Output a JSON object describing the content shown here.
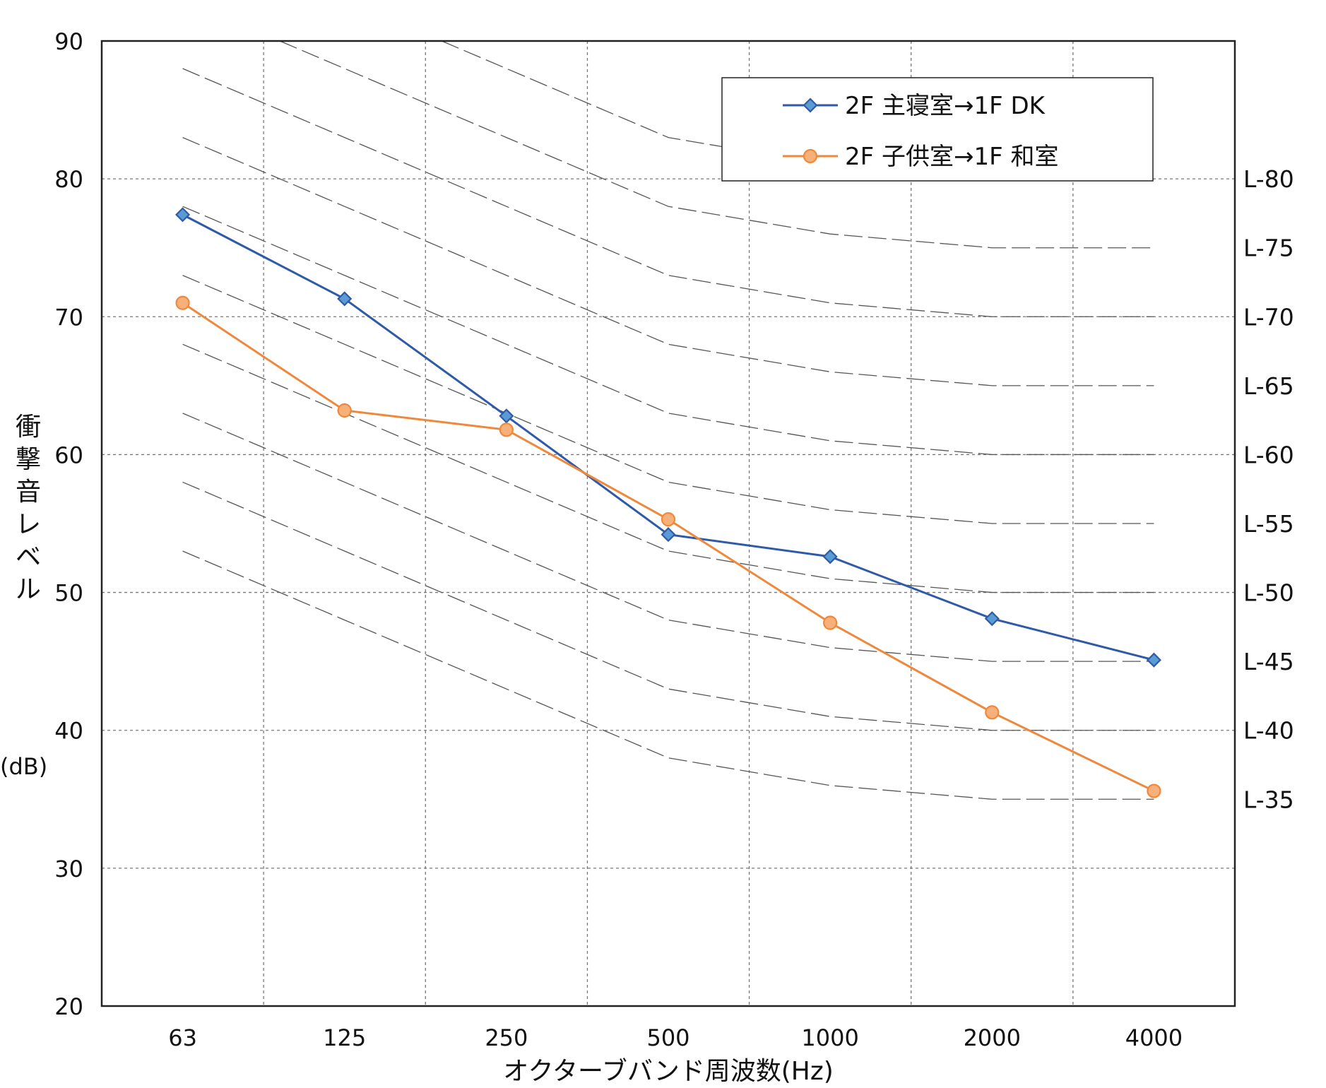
{
  "chart_data": {
    "type": "line",
    "categories": [
      "63",
      "125",
      "250",
      "500",
      "1000",
      "2000",
      "4000"
    ],
    "ylim": [
      20,
      90
    ],
    "yticks": [
      20,
      30,
      40,
      50,
      60,
      70,
      80,
      90
    ],
    "ylabel_chars": [
      "衝",
      "撃",
      "音",
      "レ",
      "ベ",
      "ル"
    ],
    "yunit": "(dB)",
    "xlabel": "オクターブバンド周波数(Hz)",
    "grid": true,
    "legend_position": "top-right",
    "series": [
      {
        "name": "2F 主寝室→1F DK",
        "color": "#2e5aa8",
        "fill": "#5b9bd5",
        "marker": "diamond",
        "values": [
          77.4,
          71.3,
          62.8,
          54.2,
          52.6,
          48.1,
          45.1
        ]
      },
      {
        "name": "2F 子供室→1F 和室",
        "color": "#f0883c",
        "fill": "#f7b07a",
        "marker": "circle",
        "values": [
          71.0,
          63.2,
          61.8,
          55.3,
          47.8,
          41.3,
          35.6
        ]
      }
    ],
    "reference_curves": {
      "offsets": [
        18,
        13,
        8,
        3,
        1,
        0,
        0
      ],
      "levels": [
        {
          "label": "L-80",
          "value": 80
        },
        {
          "label": "L-75",
          "value": 75
        },
        {
          "label": "L-70",
          "value": 70
        },
        {
          "label": "L-65",
          "value": 65
        },
        {
          "label": "L-60",
          "value": 60
        },
        {
          "label": "L-55",
          "value": 55
        },
        {
          "label": "L-50",
          "value": 50
        },
        {
          "label": "L-45",
          "value": 45
        },
        {
          "label": "L-40",
          "value": 40
        },
        {
          "label": "L-35",
          "value": 35
        }
      ]
    }
  }
}
